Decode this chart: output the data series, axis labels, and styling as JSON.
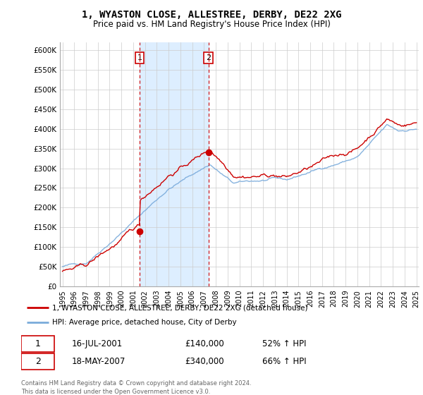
{
  "title": "1, WYASTON CLOSE, ALLESTREE, DERBY, DE22 2XG",
  "subtitle": "Price paid vs. HM Land Registry's House Price Index (HPI)",
  "legend_line1": "1, WYASTON CLOSE, ALLESTREE, DERBY, DE22 2XG (detached house)",
  "legend_line2": "HPI: Average price, detached house, City of Derby",
  "sale1_date": "16-JUL-2001",
  "sale1_price": "£140,000",
  "sale1_hpi": "52% ↑ HPI",
  "sale2_date": "18-MAY-2007",
  "sale2_price": "£340,000",
  "sale2_hpi": "66% ↑ HPI",
  "footer": "Contains HM Land Registry data © Crown copyright and database right 2024.\nThis data is licensed under the Open Government Licence v3.0.",
  "property_color": "#cc0000",
  "hpi_color": "#7aabdb",
  "sale1_x": 2001.54,
  "sale2_x": 2007.38,
  "highlight_color": "#ddeeff",
  "ylim_min": 0,
  "ylim_max": 620000,
  "xlim_min": 1995,
  "xlim_max": 2025,
  "yticks": [
    0,
    50000,
    100000,
    150000,
    200000,
    250000,
    300000,
    350000,
    400000,
    450000,
    500000,
    550000,
    600000
  ]
}
